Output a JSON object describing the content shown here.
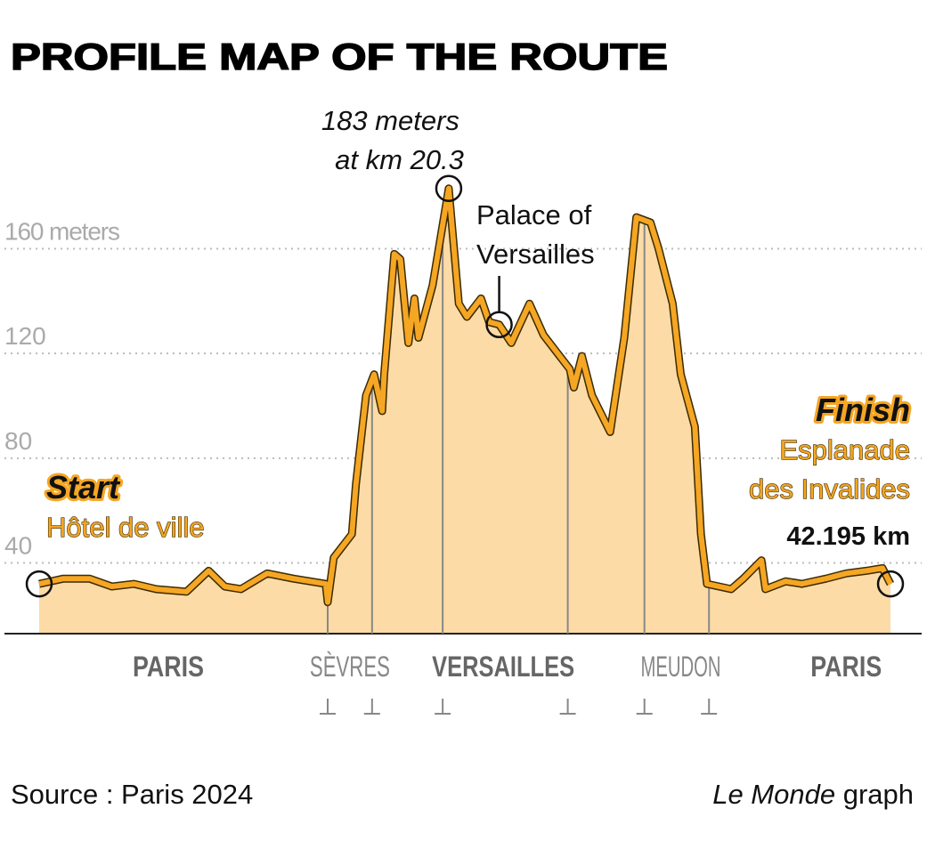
{
  "chart_data": {
    "type": "area",
    "title": "PROFILE MAP OF THE ROUTE",
    "x": [
      0,
      1.2,
      2.5,
      3.6,
      4.7,
      5.8,
      7.3,
      8.4,
      9.2,
      10.0,
      11.3,
      12.6,
      14.2,
      14.3,
      14.6,
      15.5,
      15.7,
      16.2,
      16.6,
      17.0,
      17.1,
      17.6,
      17.9,
      18.3,
      18.6,
      18.8,
      19.5,
      20.3,
      20.8,
      21.2,
      21.9,
      22.3,
      22.8,
      23.4,
      24.3,
      25.0,
      25.6,
      26.3,
      26.5,
      26.9,
      27.4,
      28.3,
      29.0,
      29.6,
      30.3,
      30.7,
      31.4,
      31.8,
      32.5,
      32.8,
      33.1,
      34.3,
      34.9,
      35.8,
      36.0,
      37.0,
      37.8,
      39.0,
      40.0,
      41.0,
      41.8,
      42.195
    ],
    "values": [
      32,
      34,
      34,
      31,
      32,
      30,
      29,
      37,
      31,
      30,
      36,
      34,
      32,
      25,
      42,
      51,
      70,
      104,
      112,
      98,
      112,
      158,
      156,
      124,
      141,
      126,
      146,
      183,
      139,
      134,
      141,
      132,
      131,
      124,
      139,
      127,
      121,
      114,
      107,
      119,
      104,
      90,
      126,
      172,
      170,
      160,
      139,
      112,
      92,
      51,
      32,
      30,
      34,
      41,
      30,
      33,
      32,
      34,
      36,
      37,
      38,
      32
    ],
    "color": "#f5a623",
    "fill": "#fcdba6",
    "xlim": [
      0,
      42.195
    ],
    "ylim": [
      13,
      187
    ],
    "yticks": [
      40,
      80,
      120,
      {
        "value": 160,
        "label": "160 meters"
      }
    ],
    "grid": true,
    "boundaries": [
      14.3,
      16.5,
      20.0,
      26.2,
      30.0,
      33.2
    ],
    "towns": [
      {
        "name": "PARIS",
        "km": 6.4,
        "bold": true
      },
      {
        "name": "SÈVRES",
        "km": 15.4,
        "bold": false
      },
      {
        "name": "VERSAILLES",
        "km": 23.0,
        "bold": true
      },
      {
        "name": "MEUDON",
        "km": 31.8,
        "bold": false
      },
      {
        "name": "PARIS",
        "km": 40.0,
        "bold": true
      }
    ],
    "peak": {
      "index": 27,
      "lines": [
        "183 meters",
        "at km 20.3"
      ]
    },
    "palace": {
      "index": 32,
      "lines": [
        "Palace of",
        "Versailles"
      ]
    },
    "start": {
      "index": 0,
      "title": "Start",
      "place": "Hôtel de ville"
    },
    "finish": {
      "index": 61,
      "title": "Finish",
      "place": [
        "Esplanade",
        "des Invalides"
      ],
      "distance": "42.195 km"
    },
    "source": "Source : Paris 2024",
    "credit": {
      "publication": "Le Monde",
      "suffix": " graph"
    }
  }
}
